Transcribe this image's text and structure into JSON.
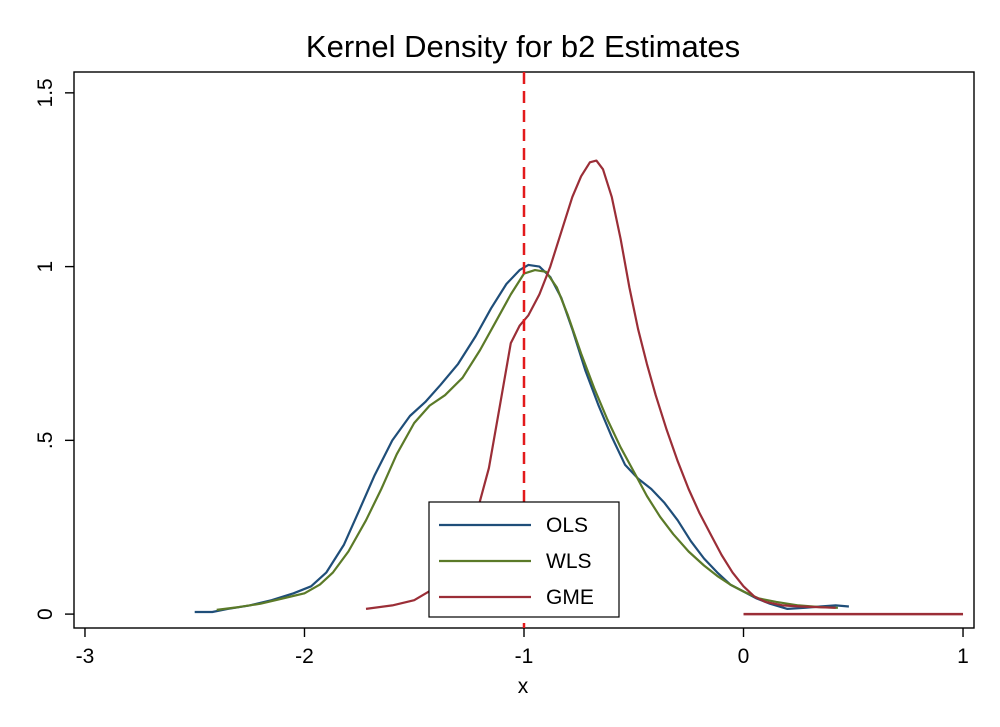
{
  "chart_data": {
    "type": "line",
    "title": "Kernel Density for b2 Estimates",
    "xlabel": "x",
    "ylabel": "",
    "xlim": [
      -3.05,
      1.05
    ],
    "ylim": [
      -0.04,
      1.56
    ],
    "x_ticks": [
      {
        "value": -3,
        "label": "-3"
      },
      {
        "value": -2,
        "label": "-2"
      },
      {
        "value": -1,
        "label": "-1"
      },
      {
        "value": 0,
        "label": "0"
      },
      {
        "value": 1,
        "label": "1"
      }
    ],
    "y_ticks": [
      {
        "value": 0,
        "label": "0"
      },
      {
        "value": 0.5,
        "label": ".5"
      },
      {
        "value": 1,
        "label": "1"
      },
      {
        "value": 1.5,
        "label": "1.5"
      }
    ],
    "grid": false,
    "legend": "bottom-center",
    "reference_line": {
      "x": -1,
      "color": "#e31a1c",
      "style": "dashed"
    },
    "baseline_segment": {
      "x": [
        0,
        1
      ],
      "y": 0,
      "color": "#9b2e37"
    },
    "series": [
      {
        "name": "OLS",
        "color": "#1f4e79",
        "x": [
          -2.5,
          -2.42,
          -2.35,
          -2.25,
          -2.15,
          -2.05,
          -1.97,
          -1.9,
          -1.82,
          -1.75,
          -1.68,
          -1.6,
          -1.52,
          -1.45,
          -1.38,
          -1.3,
          -1.22,
          -1.15,
          -1.08,
          -1.02,
          -0.98,
          -0.93,
          -0.88,
          -0.83,
          -0.78,
          -0.72,
          -0.66,
          -0.6,
          -0.54,
          -0.48,
          -0.42,
          -0.36,
          -0.3,
          -0.24,
          -0.18,
          -0.12,
          -0.06,
          0,
          0.06,
          0.12,
          0.2,
          0.28,
          0.35,
          0.42,
          0.48
        ],
        "y": [
          0.006,
          0.006,
          0.015,
          0.025,
          0.04,
          0.06,
          0.08,
          0.12,
          0.2,
          0.3,
          0.4,
          0.5,
          0.57,
          0.61,
          0.66,
          0.72,
          0.8,
          0.88,
          0.95,
          0.99,
          1.005,
          1.0,
          0.97,
          0.91,
          0.82,
          0.7,
          0.6,
          0.51,
          0.43,
          0.39,
          0.36,
          0.32,
          0.27,
          0.21,
          0.16,
          0.12,
          0.085,
          0.065,
          0.045,
          0.03,
          0.015,
          0.018,
          0.022,
          0.025,
          0.022
        ]
      },
      {
        "name": "WLS",
        "color": "#5b7a28",
        "x": [
          -2.4,
          -2.3,
          -2.2,
          -2.1,
          -2.0,
          -1.93,
          -1.87,
          -1.8,
          -1.72,
          -1.65,
          -1.58,
          -1.5,
          -1.43,
          -1.36,
          -1.28,
          -1.2,
          -1.13,
          -1.06,
          -1.0,
          -0.95,
          -0.9,
          -0.85,
          -0.8,
          -0.74,
          -0.68,
          -0.62,
          -0.56,
          -0.5,
          -0.44,
          -0.38,
          -0.32,
          -0.25,
          -0.18,
          -0.12,
          -0.06,
          0,
          0.07,
          0.15,
          0.25,
          0.35,
          0.43
        ],
        "y": [
          0.012,
          0.02,
          0.03,
          0.045,
          0.06,
          0.085,
          0.12,
          0.18,
          0.27,
          0.36,
          0.46,
          0.55,
          0.6,
          0.63,
          0.68,
          0.76,
          0.84,
          0.92,
          0.98,
          0.99,
          0.985,
          0.94,
          0.86,
          0.75,
          0.65,
          0.56,
          0.48,
          0.41,
          0.34,
          0.28,
          0.23,
          0.18,
          0.14,
          0.11,
          0.085,
          0.065,
          0.045,
          0.035,
          0.025,
          0.02,
          0.018
        ]
      },
      {
        "name": "GME",
        "color": "#9b2e37",
        "x": [
          -1.72,
          -1.6,
          -1.5,
          -1.42,
          -1.35,
          -1.28,
          -1.22,
          -1.16,
          -1.11,
          -1.06,
          -1.02,
          -0.98,
          -0.93,
          -0.88,
          -0.83,
          -0.78,
          -0.74,
          -0.7,
          -0.67,
          -0.64,
          -0.6,
          -0.56,
          -0.52,
          -0.48,
          -0.44,
          -0.4,
          -0.35,
          -0.3,
          -0.25,
          -0.2,
          -0.15,
          -0.1,
          -0.05,
          0,
          0.05,
          0.1,
          0.18,
          0.26,
          0.34,
          0.42
        ],
        "y": [
          0.015,
          0.025,
          0.04,
          0.07,
          0.11,
          0.17,
          0.28,
          0.42,
          0.6,
          0.78,
          0.83,
          0.86,
          0.92,
          1.0,
          1.1,
          1.2,
          1.26,
          1.3,
          1.305,
          1.28,
          1.2,
          1.08,
          0.94,
          0.82,
          0.72,
          0.63,
          0.53,
          0.44,
          0.36,
          0.29,
          0.23,
          0.17,
          0.12,
          0.08,
          0.05,
          0.035,
          0.025,
          0.022,
          0.02,
          0.018
        ]
      }
    ]
  }
}
